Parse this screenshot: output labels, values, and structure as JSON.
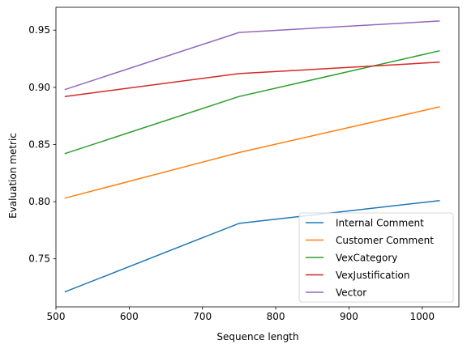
{
  "chart_data": {
    "type": "line",
    "title": "",
    "xlabel": "Sequence length",
    "ylabel": "Evaluation metric",
    "x": [
      512,
      750,
      1024
    ],
    "xlim": [
      500,
      1050
    ],
    "ylim": [
      0.708,
      0.97
    ],
    "xticks": [
      500,
      600,
      700,
      800,
      900,
      1000
    ],
    "xtick_labels": [
      "500",
      "600",
      "700",
      "800",
      "900",
      "1000"
    ],
    "yticks": [
      0.75,
      0.8,
      0.85,
      0.9,
      0.95
    ],
    "ytick_labels": [
      "0.75",
      "0.80",
      "0.85",
      "0.90",
      "0.95"
    ],
    "grid": false,
    "legend_position": "bottom-right",
    "series": [
      {
        "name": "Internal Comment",
        "color": "#1f77b4",
        "values": [
          0.721,
          0.781,
          0.801
        ]
      },
      {
        "name": "Customer Comment",
        "color": "#ff7f0e",
        "values": [
          0.803,
          0.843,
          0.883
        ]
      },
      {
        "name": "VexCategory",
        "color": "#2ca02c",
        "values": [
          0.842,
          0.892,
          0.932
        ]
      },
      {
        "name": "VexJustification",
        "color": "#d62728",
        "values": [
          0.892,
          0.912,
          0.922
        ]
      },
      {
        "name": "Vector",
        "color": "#9467bd",
        "values": [
          0.898,
          0.948,
          0.958
        ]
      }
    ]
  }
}
